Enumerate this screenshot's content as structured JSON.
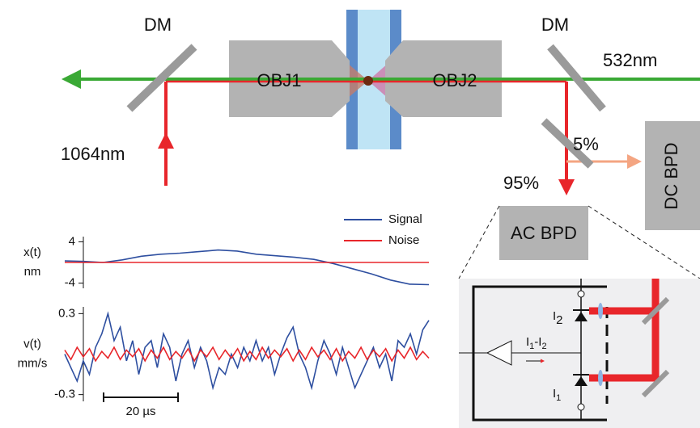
{
  "labels": {
    "dm_left": "DM",
    "dm_right": "DM",
    "obj1": "OBJ1",
    "obj2": "OBJ2",
    "green": "532nm",
    "red": "1064nm",
    "split_small": "5%",
    "split_large": "95%",
    "dc": "DC BPD",
    "ac": "AC BPD",
    "scale": "20 µs"
  },
  "inset": {
    "i2": [
      "I",
      "2"
    ],
    "i1": [
      "I",
      "1"
    ],
    "diff": [
      "I",
      "1",
      "-I",
      "2"
    ]
  },
  "plots": [
    {
      "ylabel": [
        "x(t)",
        "nm"
      ],
      "ylim": [
        -5,
        5
      ],
      "yticks": [
        4,
        -4
      ],
      "series": [
        {
          "name": "Signal",
          "color": "#2e4fa0",
          "values": [
            0.3,
            0.2,
            0,
            0.5,
            1.2,
            1.6,
            1.8,
            2.1,
            2.4,
            2.2,
            1.6,
            1.3,
            1.0,
            0.6,
            -0.2,
            -1.2,
            -2.2,
            -3.4,
            -4.2,
            -4.3
          ]
        },
        {
          "name": "Noise",
          "color": "#e8262b",
          "values": [
            0,
            0
          ]
        }
      ]
    },
    {
      "ylabel": [
        "v(t)",
        "mm/s"
      ],
      "ylim": [
        -0.35,
        0.35
      ],
      "yticks": [
        0.3,
        -0.3
      ],
      "series": [
        {
          "name": "Signal",
          "color": "#2e4fa0",
          "values": [
            0.0,
            -0.1,
            -0.2,
            -0.05,
            -0.15,
            0.05,
            0.15,
            0.3,
            0.1,
            0.2,
            -0.05,
            0.1,
            -0.15,
            0.05,
            0.1,
            -0.1,
            0.15,
            0.05,
            -0.2,
            0.0,
            0.1,
            -0.1,
            0.05,
            -0.05,
            -0.25,
            -0.1,
            -0.15,
            0.0,
            -0.1,
            0.05,
            -0.05,
            0.1,
            -0.05,
            0.05,
            -0.15,
            0.0,
            0.12,
            0.2,
            0.0,
            -0.1,
            -0.25,
            -0.05,
            0.1,
            0.0,
            -0.15,
            0.05,
            -0.1,
            -0.25,
            -0.15,
            -0.05,
            0.05,
            -0.1,
            0.0,
            -0.2,
            0.1,
            0.05,
            0.15,
            0.0,
            0.18,
            0.25
          ]
        },
        {
          "name": "Noise",
          "color": "#e8262b",
          "values": [
            0.03,
            -0.04,
            0.05,
            -0.02,
            0.04,
            -0.05,
            0.02,
            -0.03,
            0.05,
            -0.04,
            0.03,
            -0.02,
            0.04,
            -0.05,
            0.03,
            -0.03,
            0.05,
            -0.04,
            0.02,
            -0.03,
            0.04,
            -0.05,
            0.03,
            -0.02,
            0.05,
            -0.04,
            0.03,
            -0.03,
            0.04,
            -0.05,
            0.02,
            -0.04,
            0.05,
            -0.03,
            0.03,
            -0.02,
            0.04,
            -0.05,
            0.03,
            -0.04,
            0.05,
            -0.02,
            0.03,
            -0.04,
            0.04,
            -0.05,
            0.02,
            -0.03,
            0.05,
            -0.04,
            0.03,
            -0.02,
            0.04,
            -0.05,
            0.03,
            -0.03,
            0.05,
            -0.04,
            0.02,
            -0.03
          ]
        }
      ]
    }
  ]
}
